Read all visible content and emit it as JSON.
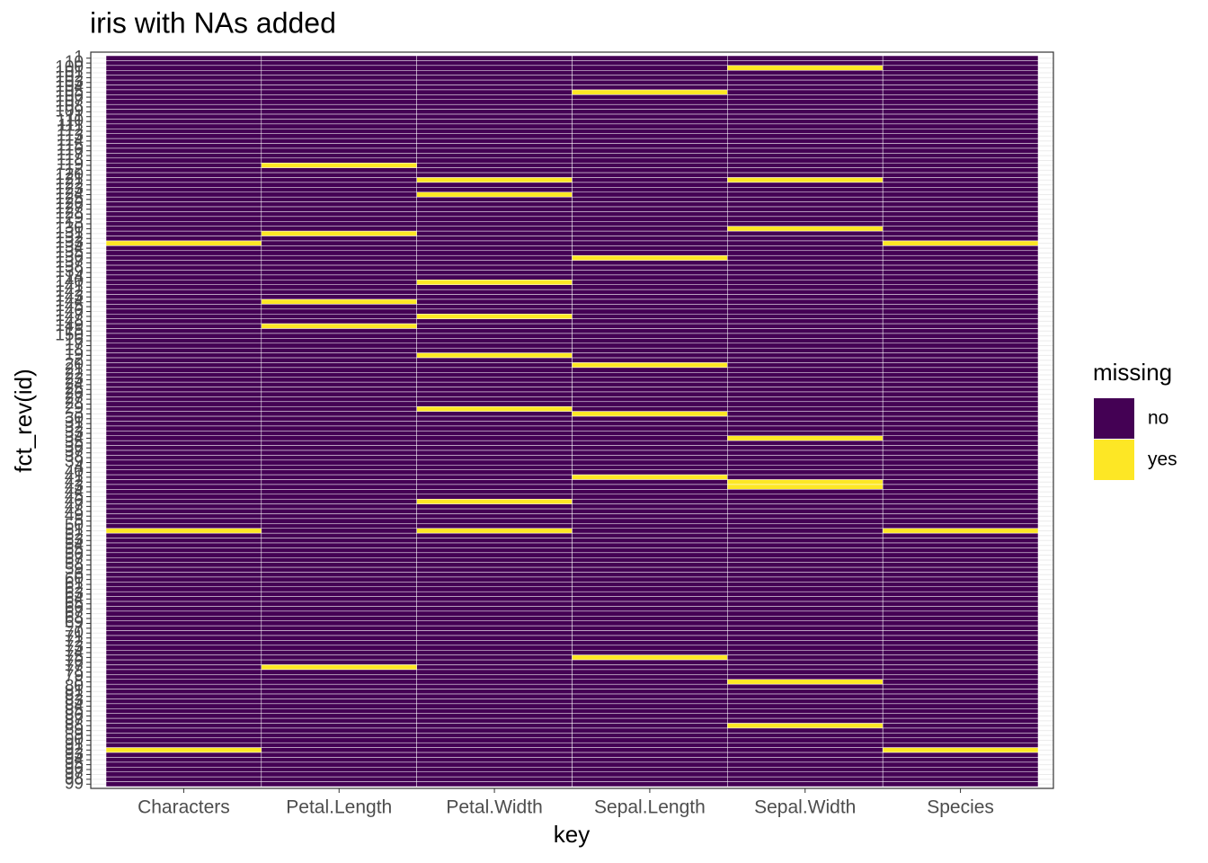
{
  "chart_data": {
    "type": "heatmap",
    "title": "iris with NAs added",
    "x_label": "key",
    "y_label": "fct_rev(id)",
    "x_categories": [
      "Characters",
      "Petal.Length",
      "Petal.Width",
      "Sepal.Length",
      "Sepal.Width",
      "Species"
    ],
    "y_categories": [
      "1",
      "10",
      "100",
      "101",
      "102",
      "103",
      "104",
      "105",
      "106",
      "107",
      "108",
      "109",
      "11",
      "110",
      "111",
      "112",
      "113",
      "114",
      "115",
      "116",
      "117",
      "118",
      "119",
      "12",
      "120",
      "121",
      "122",
      "123",
      "124",
      "125",
      "126",
      "127",
      "128",
      "129",
      "13",
      "130",
      "131",
      "132",
      "133",
      "134",
      "135",
      "136",
      "137",
      "138",
      "139",
      "14",
      "140",
      "141",
      "142",
      "143",
      "144",
      "145",
      "146",
      "147",
      "148",
      "149",
      "15",
      "150",
      "16",
      "17",
      "18",
      "19",
      "2",
      "20",
      "21",
      "22",
      "23",
      "24",
      "25",
      "26",
      "27",
      "28",
      "29",
      "3",
      "30",
      "31",
      "32",
      "33",
      "34",
      "35",
      "36",
      "37",
      "38",
      "39",
      "4",
      "40",
      "41",
      "42",
      "43",
      "44",
      "45",
      "46",
      "47",
      "48",
      "49",
      "5",
      "50",
      "51",
      "52",
      "53",
      "54",
      "55",
      "56",
      "57",
      "58",
      "59",
      "6",
      "60",
      "61",
      "62",
      "63",
      "64",
      "65",
      "66",
      "67",
      "68",
      "69",
      "7",
      "70",
      "71",
      "72",
      "73",
      "74",
      "75",
      "76",
      "77",
      "78",
      "79",
      "8",
      "80",
      "81",
      "82",
      "83",
      "84",
      "85",
      "86",
      "87",
      "88",
      "89",
      "9",
      "90",
      "91",
      "92",
      "93",
      "94",
      "95",
      "96",
      "97",
      "98",
      "99"
    ],
    "legend": {
      "title": "missing",
      "labels": [
        "no",
        "yes"
      ],
      "colors": [
        "#440154",
        "#fde725"
      ]
    },
    "values": [
      [
        0,
        0,
        0,
        0,
        0,
        0,
        0,
        0,
        0,
        0,
        0,
        0,
        0,
        0,
        0,
        0,
        0,
        0,
        0,
        0,
        0,
        0,
        0,
        0,
        0,
        0,
        0,
        0,
        0,
        0,
        0,
        0,
        0,
        0,
        0,
        0,
        0,
        0,
        1,
        0,
        0,
        0,
        0,
        0,
        0,
        0,
        0,
        0,
        0,
        0,
        0,
        0,
        0,
        0,
        0,
        0,
        0,
        0,
        0,
        0,
        0,
        0,
        0,
        0,
        0,
        0,
        0,
        0,
        0,
        0,
        0,
        0,
        0,
        0,
        0,
        0,
        0,
        0,
        0,
        0,
        0,
        0,
        0,
        0,
        0,
        0,
        0,
        0,
        0,
        0,
        0,
        0,
        0,
        0,
        0,
        0,
        0,
        1,
        0,
        0,
        0,
        0,
        0,
        0,
        0,
        0,
        0,
        0,
        0,
        0,
        0,
        0,
        0,
        0,
        0,
        0,
        0,
        0,
        0,
        0,
        0,
        0,
        0,
        0,
        0,
        0,
        0,
        0,
        0,
        0,
        0,
        0,
        0,
        0,
        0,
        0,
        0,
        0,
        0,
        0,
        0,
        0,
        1,
        0,
        0,
        0,
        0,
        0,
        0,
        0
      ],
      [
        0,
        0,
        0,
        0,
        0,
        0,
        0,
        0,
        0,
        0,
        0,
        0,
        0,
        0,
        0,
        0,
        0,
        0,
        0,
        0,
        0,
        0,
        1,
        0,
        0,
        0,
        0,
        0,
        0,
        0,
        0,
        0,
        0,
        0,
        0,
        0,
        1,
        0,
        0,
        0,
        0,
        0,
        0,
        0,
        0,
        0,
        0,
        0,
        0,
        0,
        1,
        0,
        0,
        0,
        0,
        1,
        0,
        0,
        0,
        0,
        0,
        0,
        0,
        0,
        0,
        0,
        0,
        0,
        0,
        0,
        0,
        0,
        0,
        0,
        0,
        0,
        0,
        0,
        0,
        0,
        0,
        0,
        0,
        0,
        0,
        0,
        0,
        0,
        0,
        0,
        0,
        0,
        0,
        0,
        0,
        0,
        0,
        0,
        0,
        0,
        0,
        0,
        0,
        0,
        0,
        0,
        0,
        0,
        0,
        0,
        0,
        0,
        0,
        0,
        0,
        0,
        0,
        0,
        0,
        0,
        0,
        0,
        0,
        0,
        0,
        1,
        0,
        0,
        0,
        0,
        0,
        0,
        0,
        0,
        0,
        0,
        0,
        0,
        0,
        0,
        0,
        0,
        0,
        0,
        0,
        0,
        0,
        0,
        0,
        0
      ],
      [
        0,
        0,
        0,
        0,
        0,
        0,
        0,
        0,
        0,
        0,
        0,
        0,
        0,
        0,
        0,
        0,
        0,
        0,
        0,
        0,
        0,
        0,
        0,
        0,
        0,
        1,
        0,
        0,
        1,
        0,
        0,
        0,
        0,
        0,
        0,
        0,
        0,
        0,
        0,
        0,
        0,
        0,
        0,
        0,
        0,
        0,
        1,
        0,
        0,
        0,
        0,
        0,
        0,
        1,
        0,
        0,
        0,
        0,
        0,
        0,
        0,
        1,
        0,
        0,
        0,
        0,
        0,
        0,
        0,
        0,
        0,
        0,
        1,
        0,
        0,
        0,
        0,
        0,
        0,
        0,
        0,
        0,
        0,
        0,
        0,
        0,
        0,
        0,
        0,
        0,
        0,
        1,
        0,
        0,
        0,
        0,
        0,
        1,
        0,
        0,
        0,
        0,
        0,
        0,
        0,
        0,
        0,
        0,
        0,
        0,
        0,
        0,
        0,
        0,
        0,
        0,
        0,
        0,
        0,
        0,
        0,
        0,
        0,
        0,
        0,
        0,
        0,
        0,
        0,
        0,
        0,
        0,
        0,
        0,
        0,
        0,
        0,
        0,
        0,
        0,
        0,
        0,
        0,
        0,
        0,
        0,
        0,
        0,
        0,
        0
      ],
      [
        0,
        0,
        0,
        0,
        0,
        0,
        0,
        1,
        0,
        0,
        0,
        0,
        0,
        0,
        0,
        0,
        0,
        0,
        0,
        0,
        0,
        0,
        0,
        0,
        0,
        0,
        0,
        0,
        0,
        0,
        0,
        0,
        0,
        0,
        0,
        0,
        0,
        0,
        0,
        0,
        0,
        1,
        0,
        0,
        0,
        0,
        0,
        0,
        0,
        0,
        0,
        0,
        0,
        0,
        0,
        0,
        0,
        0,
        0,
        0,
        0,
        0,
        0,
        1,
        0,
        0,
        0,
        0,
        0,
        0,
        0,
        0,
        0,
        1,
        0,
        0,
        0,
        0,
        0,
        0,
        0,
        0,
        0,
        0,
        0,
        0,
        1,
        0,
        0,
        0,
        0,
        0,
        0,
        0,
        0,
        0,
        0,
        0,
        0,
        0,
        0,
        0,
        0,
        0,
        0,
        0,
        0,
        0,
        0,
        0,
        0,
        0,
        0,
        0,
        0,
        0,
        0,
        0,
        0,
        0,
        0,
        0,
        0,
        1,
        0,
        0,
        0,
        0,
        0,
        0,
        0,
        0,
        0,
        0,
        0,
        0,
        0,
        0,
        0,
        0,
        0,
        0,
        0,
        0,
        0,
        0,
        0,
        0,
        0,
        0
      ],
      [
        0,
        0,
        1,
        0,
        0,
        0,
        0,
        0,
        0,
        0,
        0,
        0,
        0,
        0,
        0,
        0,
        0,
        0,
        0,
        0,
        0,
        0,
        0,
        0,
        0,
        1,
        0,
        0,
        0,
        0,
        0,
        0,
        0,
        0,
        0,
        1,
        0,
        0,
        0,
        0,
        0,
        0,
        0,
        0,
        0,
        0,
        0,
        0,
        0,
        0,
        0,
        0,
        0,
        0,
        0,
        0,
        0,
        0,
        0,
        0,
        0,
        0,
        0,
        0,
        0,
        0,
        0,
        0,
        0,
        0,
        0,
        0,
        0,
        0,
        0,
        0,
        0,
        0,
        1,
        0,
        0,
        0,
        0,
        0,
        0,
        0,
        0,
        1,
        1,
        0,
        0,
        0,
        0,
        0,
        0,
        0,
        0,
        0,
        0,
        0,
        0,
        0,
        0,
        0,
        0,
        0,
        0,
        0,
        0,
        0,
        0,
        0,
        0,
        0,
        0,
        0,
        0,
        0,
        0,
        0,
        0,
        0,
        0,
        0,
        0,
        0,
        0,
        0,
        1,
        0,
        0,
        0,
        0,
        0,
        0,
        0,
        0,
        1,
        0,
        0,
        0,
        0,
        0,
        0,
        0,
        0,
        0,
        0,
        0,
        0
      ],
      [
        0,
        0,
        0,
        0,
        0,
        0,
        0,
        0,
        0,
        0,
        0,
        0,
        0,
        0,
        0,
        0,
        0,
        0,
        0,
        0,
        0,
        0,
        0,
        0,
        0,
        0,
        0,
        0,
        0,
        0,
        0,
        0,
        0,
        0,
        0,
        0,
        0,
        0,
        1,
        0,
        0,
        0,
        0,
        0,
        0,
        0,
        0,
        0,
        0,
        0,
        0,
        0,
        0,
        0,
        0,
        0,
        0,
        0,
        0,
        0,
        0,
        0,
        0,
        0,
        0,
        0,
        0,
        0,
        0,
        0,
        0,
        0,
        0,
        0,
        0,
        0,
        0,
        0,
        0,
        0,
        0,
        0,
        0,
        0,
        0,
        0,
        0,
        0,
        0,
        0,
        0,
        0,
        0,
        0,
        0,
        0,
        0,
        1,
        0,
        0,
        0,
        0,
        0,
        0,
        0,
        0,
        0,
        0,
        0,
        0,
        0,
        0,
        0,
        0,
        0,
        0,
        0,
        0,
        0,
        0,
        0,
        0,
        0,
        0,
        0,
        0,
        0,
        0,
        0,
        0,
        0,
        0,
        0,
        0,
        0,
        0,
        0,
        0,
        0,
        0,
        0,
        0,
        1,
        0,
        0,
        0,
        0,
        0,
        0,
        0
      ]
    ]
  }
}
